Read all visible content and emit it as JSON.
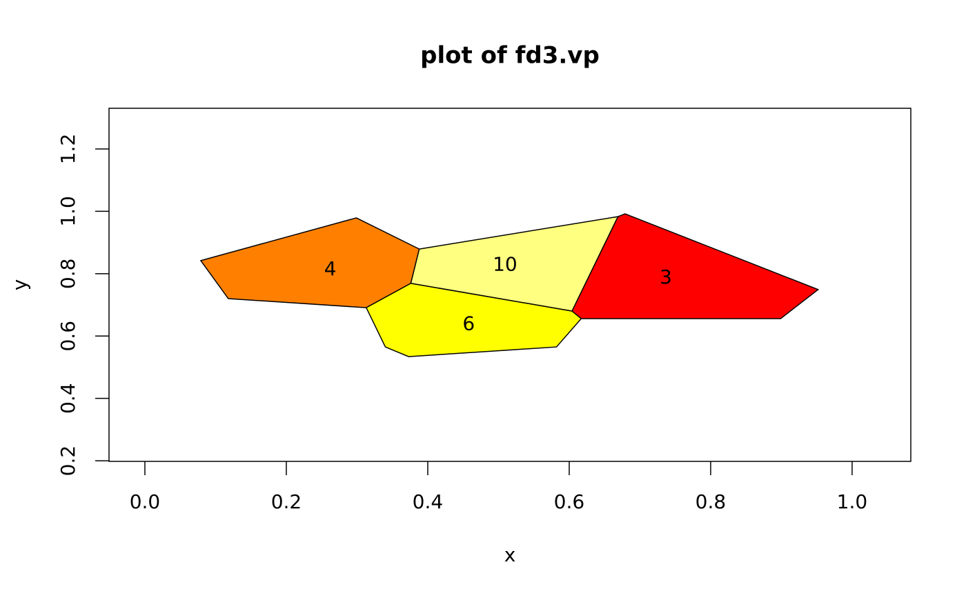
{
  "chart_data": {
    "type": "polygon",
    "title": "plot of fd3.vp",
    "x_label": "x",
    "y_label": "y",
    "xlim": [
      -0.0507,
      1.083
    ],
    "ylim": [
      0.198,
      1.3305
    ],
    "xticks": [
      {
        "value": 0,
        "label": "0.0"
      },
      0.2,
      0.4,
      0.6,
      0.8,
      {
        "value": 1,
        "label": "1.0"
      }
    ],
    "yticks": [
      0.2,
      0.4,
      0.6,
      0.8,
      {
        "value": 1,
        "label": "1.0"
      },
      1.2
    ],
    "series": [
      {
        "name": "4",
        "color": "#FF8000",
        "x": [
          0.079,
          0.299,
          0.388,
          0.376,
          0.313,
          0.118
        ],
        "y": [
          0.842,
          0.979,
          0.879,
          0.769,
          0.691,
          0.72
        ]
      },
      {
        "name": "10",
        "color": "#FFFF80",
        "x": [
          0.388,
          0.669,
          0.604,
          0.376
        ],
        "y": [
          0.879,
          0.983,
          0.68,
          0.769
        ]
      },
      {
        "name": "6",
        "color": "#FFFF00",
        "x": [
          0.376,
          0.604,
          0.617,
          0.582,
          0.373,
          0.34,
          0.313
        ],
        "y": [
          0.769,
          0.68,
          0.656,
          0.565,
          0.534,
          0.565,
          0.691
        ]
      },
      {
        "name": "3",
        "color": "#FF0000",
        "x": [
          0.669,
          0.679,
          0.952,
          0.899,
          0.617,
          0.604
        ],
        "y": [
          0.983,
          0.992,
          0.749,
          0.656,
          0.656,
          0.68
        ]
      }
    ]
  }
}
